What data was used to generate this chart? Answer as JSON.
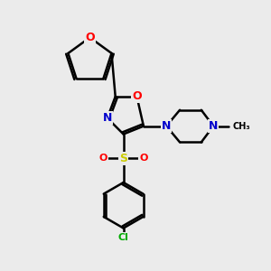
{
  "bg_color": "#ebebeb",
  "bond_color": "#000000",
  "line_width": 1.8,
  "atom_colors": {
    "O": "#ff0000",
    "N": "#0000cc",
    "S": "#cccc00",
    "Cl": "#00aa00",
    "C": "#000000"
  },
  "font_size_atom": 9,
  "font_size_small": 8
}
